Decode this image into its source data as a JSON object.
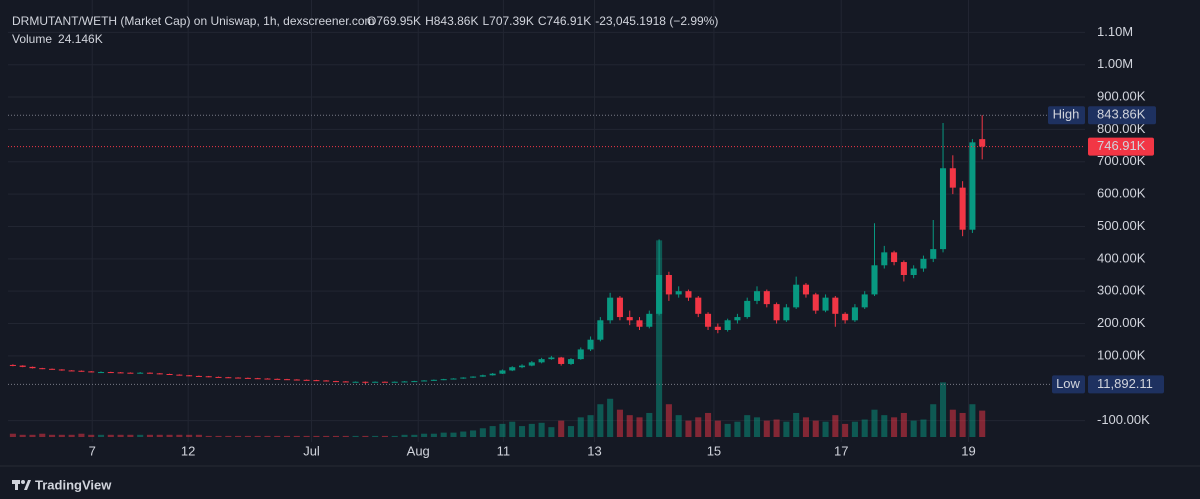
{
  "chart_data": {
    "type": "candlestick",
    "legend": {
      "title": "DRMUTANT/WETH (Market Cap) on Uniswap, 1h, dexscreener.com",
      "ohlc": [
        {
          "key": "O",
          "value": "769.95K"
        },
        {
          "key": "H",
          "value": "843.86K"
        },
        {
          "key": "L",
          "value": "707.39K"
        },
        {
          "key": "C",
          "value": "746.91K"
        }
      ],
      "change": "-23,045.1918 (−2.99%)",
      "volume_key": "Volume",
      "volume_value": "24.146K"
    },
    "up_color": "#089981",
    "down_color": "#f23645",
    "xlim": [
      0,
      110
    ],
    "xticks": [
      {
        "value": 8.6,
        "label": "7"
      },
      {
        "value": 18.4,
        "label": "12"
      },
      {
        "value": 31.0,
        "label": "Jul"
      },
      {
        "value": 41.9,
        "label": "Aug"
      },
      {
        "value": 50.6,
        "label": "11"
      },
      {
        "value": 59.9,
        "label": "13"
      },
      {
        "value": 72.1,
        "label": "15"
      },
      {
        "value": 85.1,
        "label": "17"
      },
      {
        "value": 98.1,
        "label": "19"
      }
    ],
    "ylim": [
      -160000,
      1200000
    ],
    "yticks": [
      {
        "value": 1100000,
        "label": "1.10M"
      },
      {
        "value": 1000000,
        "label": "1.00M"
      },
      {
        "value": 900000,
        "label": "900.00K"
      },
      {
        "value": 800000,
        "label": "800.00K"
      },
      {
        "value": 700000,
        "label": "700.00K"
      },
      {
        "value": 600000,
        "label": "600.00K"
      },
      {
        "value": 500000,
        "label": "500.00K"
      },
      {
        "value": 400000,
        "label": "400.00K"
      },
      {
        "value": 300000,
        "label": "300.00K"
      },
      {
        "value": 200000,
        "label": "200.00K"
      },
      {
        "value": 100000,
        "label": "100.00K"
      },
      {
        "value": -100000,
        "label": "-100.00K"
      }
    ],
    "grid": true,
    "volume_lim": [
      0,
      400000
    ],
    "open": [
      72000,
      70000,
      66000,
      62000,
      60000,
      58000,
      55000,
      54000,
      52000,
      50000,
      50000,
      49000,
      48000,
      47000,
      48000,
      46000,
      44000,
      42000,
      40000,
      38000,
      37000,
      35000,
      34000,
      33000,
      32000,
      31000,
      30000,
      29000,
      28000,
      27000,
      26000,
      25000,
      24000,
      22000,
      21000,
      20000,
      20000,
      19000,
      20000,
      19000,
      20000,
      21000,
      22000,
      24000,
      26000,
      28000,
      30000,
      33000,
      36000,
      40000,
      45000,
      55000,
      65000,
      70000,
      80000,
      90000,
      95000,
      75000,
      90000,
      120000,
      150000,
      210000,
      280000,
      220000,
      210000,
      190000,
      230000,
      350000,
      290000,
      300000,
      280000,
      230000,
      190000,
      180000,
      210000,
      220000,
      270000,
      300000,
      260000,
      210000,
      250000,
      320000,
      290000,
      240000,
      280000,
      230000,
      210000,
      250000,
      290000,
      380000,
      420000,
      390000,
      350000,
      370000,
      400000,
      430000,
      680000,
      620000,
      490000,
      769950
    ],
    "high": [
      74000,
      71000,
      67000,
      63000,
      61000,
      59000,
      56000,
      55000,
      53000,
      52000,
      51000,
      50000,
      49000,
      50000,
      49000,
      47000,
      45000,
      43000,
      41000,
      39000,
      38000,
      36000,
      35000,
      34000,
      33000,
      32000,
      31000,
      30000,
      29000,
      28000,
      27000,
      26000,
      25000,
      23000,
      22000,
      21000,
      21000,
      21000,
      21000,
      21000,
      22000,
      23000,
      25000,
      27000,
      29000,
      31000,
      34000,
      37000,
      42000,
      47000,
      58000,
      68000,
      74000,
      84000,
      94000,
      100000,
      97000,
      93000,
      126000,
      160000,
      220000,
      295000,
      285000,
      240000,
      220000,
      240000,
      460000,
      360000,
      315000,
      305000,
      285000,
      235000,
      200000,
      215000,
      230000,
      280000,
      315000,
      305000,
      265000,
      260000,
      345000,
      325000,
      295000,
      290000,
      285000,
      235000,
      260000,
      300000,
      510000,
      440000,
      425000,
      395000,
      380000,
      410000,
      520000,
      820000,
      720000,
      640000,
      770000,
      843860
    ],
    "low": [
      68000,
      65000,
      61000,
      59000,
      57000,
      54000,
      53000,
      51000,
      49000,
      48000,
      48000,
      47000,
      46000,
      46000,
      45000,
      43000,
      41000,
      39000,
      37000,
      36000,
      34000,
      33000,
      32000,
      31000,
      30000,
      29000,
      28000,
      27000,
      26000,
      25000,
      24000,
      23000,
      21000,
      20000,
      19000,
      19000,
      11892.11,
      18000,
      18000,
      18000,
      19000,
      20000,
      21000,
      23000,
      25000,
      27000,
      29000,
      32000,
      35000,
      39000,
      44000,
      53000,
      62000,
      68000,
      77000,
      88000,
      70000,
      72000,
      88000,
      115000,
      145000,
      200000,
      210000,
      195000,
      180000,
      185000,
      225000,
      270000,
      280000,
      270000,
      220000,
      180000,
      170000,
      175000,
      200000,
      215000,
      260000,
      250000,
      200000,
      205000,
      245000,
      280000,
      230000,
      235000,
      190000,
      200000,
      205000,
      245000,
      285000,
      370000,
      380000,
      330000,
      340000,
      360000,
      390000,
      420000,
      600000,
      470000,
      480000,
      707390
    ],
    "close": [
      70000,
      66000,
      62000,
      60000,
      58000,
      55000,
      54000,
      52000,
      50000,
      50000,
      49000,
      48000,
      47000,
      48000,
      46000,
      44000,
      42000,
      40000,
      38000,
      37000,
      35000,
      34000,
      33000,
      32000,
      31000,
      30000,
      29000,
      28000,
      27000,
      26000,
      25000,
      24000,
      22000,
      21000,
      20000,
      20000,
      19000,
      20000,
      19000,
      20000,
      21000,
      22000,
      24000,
      26000,
      28000,
      30000,
      33000,
      36000,
      40000,
      45000,
      55000,
      65000,
      70000,
      80000,
      90000,
      95000,
      75000,
      90000,
      120000,
      150000,
      210000,
      280000,
      220000,
      210000,
      190000,
      230000,
      350000,
      290000,
      300000,
      280000,
      230000,
      190000,
      180000,
      210000,
      220000,
      270000,
      300000,
      260000,
      210000,
      250000,
      320000,
      290000,
      240000,
      280000,
      230000,
      210000,
      250000,
      290000,
      380000,
      420000,
      390000,
      350000,
      370000,
      400000,
      430000,
      680000,
      620000,
      490000,
      760000,
      746910
    ],
    "volume": [
      3000,
      2000,
      2000,
      3000,
      2000,
      2000,
      2000,
      3000,
      2000,
      2000,
      2000,
      2000,
      2000,
      2000,
      2000,
      2000,
      2000,
      2000,
      2000,
      2000,
      1000,
      1000,
      1000,
      1000,
      1000,
      1000,
      1000,
      1000,
      1000,
      1000,
      1000,
      1000,
      1000,
      1000,
      1000,
      1000,
      1000,
      1000,
      1000,
      1000,
      2000,
      2000,
      3000,
      3000,
      4000,
      4000,
      5000,
      6000,
      8000,
      10000,
      12000,
      14000,
      10000,
      12000,
      13000,
      9000,
      15000,
      10000,
      18000,
      20000,
      30000,
      35000,
      25000,
      20000,
      18000,
      22000,
      180000,
      30000,
      20000,
      15000,
      18000,
      22000,
      15000,
      12000,
      14000,
      20000,
      18000,
      15000,
      16000,
      14000,
      22000,
      18000,
      15000,
      14000,
      20000,
      12000,
      14000,
      16000,
      25000,
      20000,
      18000,
      22000,
      15000,
      16000,
      30000,
      50000,
      25000,
      22000,
      30000,
      24146
    ],
    "high_line": {
      "label": "High",
      "value": 843860,
      "value_label": "843.86K"
    },
    "low_line": {
      "label": "Low",
      "value": 11892.11,
      "value_label": "11,892.11"
    },
    "last_line": {
      "value": 746910,
      "value_label": "746.91K"
    }
  },
  "footer": {
    "brand": "TradingView"
  }
}
